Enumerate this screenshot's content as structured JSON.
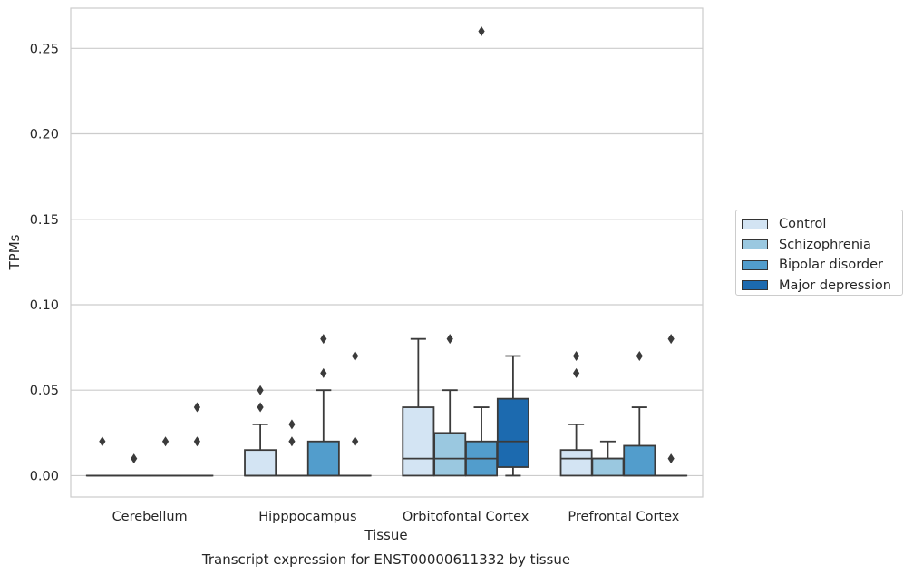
{
  "chart_data": {
    "type": "box",
    "title": "Transcript expression for ENST00000611332 by tissue",
    "xlabel": "Tissue",
    "ylabel": "TPMs",
    "ylim": [
      -0.0125,
      0.2735
    ],
    "yticks": [
      0.0,
      0.05,
      0.1,
      0.15,
      0.2,
      0.25
    ],
    "ytick_labels": [
      "0.00",
      "0.05",
      "0.10",
      "0.15",
      "0.20",
      "0.25"
    ],
    "grid": true,
    "legend_position": "right",
    "categories": [
      "Cerebellum",
      "Hipppocampus",
      "Orbitofontal Cortex",
      "Prefrontal Cortex"
    ],
    "series": [
      {
        "name": "Control",
        "color": "#d3e4f3",
        "boxes": [
          {
            "q1": 0,
            "median": 0,
            "q3": 0,
            "whisker_low": 0,
            "whisker_high": 0,
            "outliers": [
              0.02
            ]
          },
          {
            "q1": 0,
            "median": 0,
            "q3": 0.015,
            "whisker_low": 0,
            "whisker_high": 0.03,
            "outliers": [
              0.04,
              0.05
            ]
          },
          {
            "q1": 0,
            "median": 0.01,
            "q3": 0.04,
            "whisker_low": 0,
            "whisker_high": 0.08,
            "outliers": []
          },
          {
            "q1": 0,
            "median": 0.01,
            "q3": 0.015,
            "whisker_low": 0,
            "whisker_high": 0.03,
            "outliers": [
              0.06,
              0.07
            ]
          }
        ]
      },
      {
        "name": "Schizophrenia",
        "color": "#9ac8e0",
        "boxes": [
          {
            "q1": 0,
            "median": 0,
            "q3": 0,
            "whisker_low": 0,
            "whisker_high": 0,
            "outliers": [
              0.01
            ]
          },
          {
            "q1": 0,
            "median": 0,
            "q3": 0,
            "whisker_low": 0,
            "whisker_high": 0,
            "outliers": [
              0.02,
              0.03
            ]
          },
          {
            "q1": 0,
            "median": 0.01,
            "q3": 0.025,
            "whisker_low": 0,
            "whisker_high": 0.05,
            "outliers": [
              0.08
            ]
          },
          {
            "q1": 0,
            "median": 0.01,
            "q3": 0.01,
            "whisker_low": 0,
            "whisker_high": 0.02,
            "outliers": []
          }
        ]
      },
      {
        "name": "Bipolar disorder",
        "color": "#529dcc",
        "boxes": [
          {
            "q1": 0,
            "median": 0,
            "q3": 0,
            "whisker_low": 0,
            "whisker_high": 0,
            "outliers": [
              0.02
            ]
          },
          {
            "q1": 0,
            "median": 0,
            "q3": 0.02,
            "whisker_low": 0,
            "whisker_high": 0.05,
            "outliers": [
              0.06,
              0.08
            ]
          },
          {
            "q1": 0,
            "median": 0.01,
            "q3": 0.02,
            "whisker_low": 0,
            "whisker_high": 0.04,
            "outliers": [
              0.26
            ]
          },
          {
            "q1": 0,
            "median": 0,
            "q3": 0.0175,
            "whisker_low": 0,
            "whisker_high": 0.04,
            "outliers": [
              0.07
            ]
          }
        ]
      },
      {
        "name": "Major depression",
        "color": "#1c6aaf",
        "boxes": [
          {
            "q1": 0,
            "median": 0,
            "q3": 0,
            "whisker_low": 0,
            "whisker_high": 0,
            "outliers": [
              0.02,
              0.04
            ]
          },
          {
            "q1": 0,
            "median": 0,
            "q3": 0,
            "whisker_low": 0,
            "whisker_high": 0,
            "outliers": [
              0.02,
              0.07
            ]
          },
          {
            "q1": 0.005,
            "median": 0.02,
            "q3": 0.045,
            "whisker_low": 0,
            "whisker_high": 0.07,
            "outliers": []
          },
          {
            "q1": 0,
            "median": 0,
            "q3": 0,
            "whisker_low": 0,
            "whisker_high": 0,
            "outliers": [
              0.01,
              0.08
            ]
          }
        ]
      }
    ]
  }
}
